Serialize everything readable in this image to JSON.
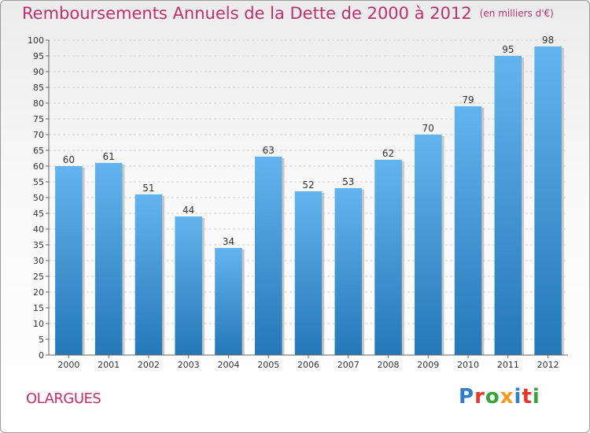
{
  "title": "Remboursements Annuels de la Dette de 2000 à 2012",
  "unit": "(en milliers d'€)",
  "commune": "OLARGUES",
  "brand": "Proxiti",
  "colors": {
    "title": "#c0306d",
    "bar_light": "#63b4ee",
    "bar_dark": "#2578b8",
    "grid": "#cfcfcf"
  },
  "chart_data": {
    "type": "bar",
    "categories": [
      "2000",
      "2001",
      "2002",
      "2003",
      "2004",
      "2005",
      "2006",
      "2007",
      "2008",
      "2009",
      "2010",
      "2011",
      "2012"
    ],
    "values": [
      60,
      61,
      51,
      44,
      34,
      63,
      52,
      53,
      62,
      70,
      79,
      95,
      98
    ],
    "ylim": [
      0,
      100
    ],
    "ytick_step": 5,
    "yticks": [
      "0",
      "5",
      "10",
      "15",
      "20",
      "25",
      "30",
      "35",
      "40",
      "45",
      "50",
      "55",
      "60",
      "65",
      "70",
      "75",
      "80",
      "85",
      "90",
      "95",
      "100"
    ],
    "data_labels": [
      "60",
      "61",
      "51",
      "44",
      "34",
      "63",
      "52",
      "53",
      "62",
      "70",
      "79",
      "95",
      "98"
    ],
    "grid": true,
    "title": "Remboursements Annuels de la Dette de 2000 à 2012",
    "xlabel": "",
    "ylabel": ""
  }
}
